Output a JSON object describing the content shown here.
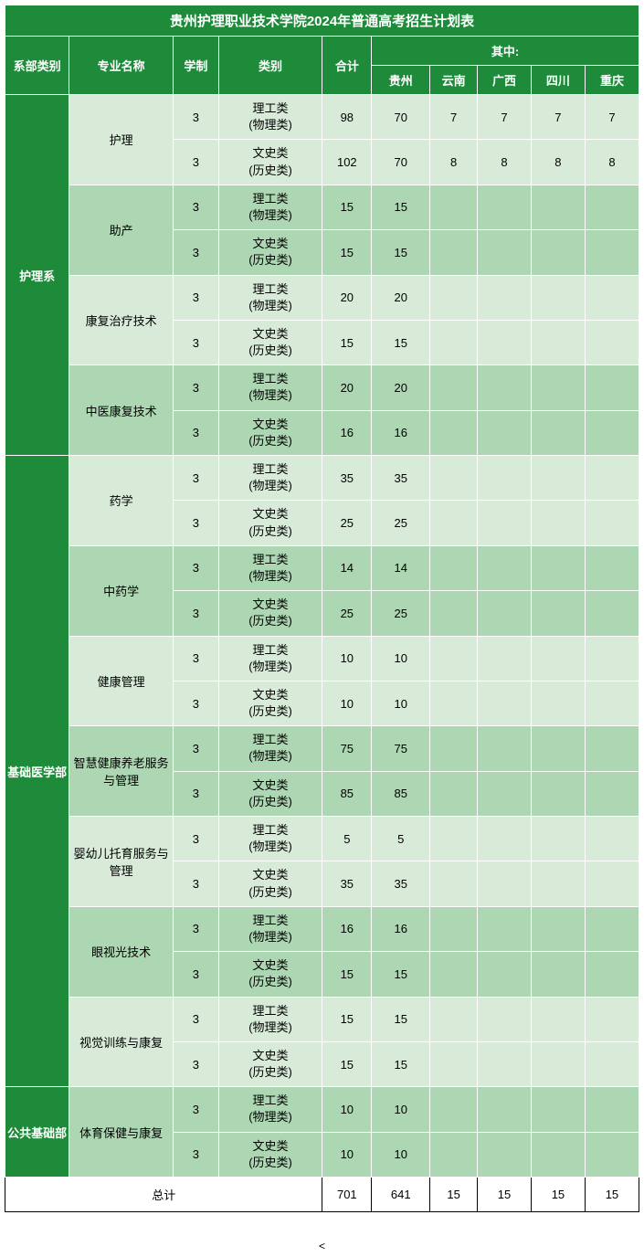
{
  "title": "贵州护理职业技术学院2024年普通高考招生计划表",
  "headers": {
    "dept": "系部类别",
    "major": "专业名称",
    "years": "学制",
    "category": "类别",
    "total": "合计",
    "breakdown": "其中:",
    "provinces": [
      "贵州",
      "云南",
      "广西",
      "四川",
      "重庆"
    ]
  },
  "categories": {
    "sci": "理工类 (物理类)",
    "lib": "文史类 (历史类)"
  },
  "departments": [
    {
      "name": "护理系",
      "rowspan": 8,
      "majors": [
        {
          "name": "护理",
          "rows": [
            {
              "y": "3",
              "cat": "sci",
              "bg": "light",
              "vals": [
                "98",
                "70",
                "7",
                "7",
                "7",
                "7"
              ]
            },
            {
              "y": "3",
              "cat": "lib",
              "bg": "light",
              "vals": [
                "102",
                "70",
                "8",
                "8",
                "8",
                "8"
              ]
            }
          ]
        },
        {
          "name": "助产",
          "rows": [
            {
              "y": "3",
              "cat": "sci",
              "bg": "dark",
              "vals": [
                "15",
                "15",
                "",
                "",
                "",
                ""
              ]
            },
            {
              "y": "3",
              "cat": "lib",
              "bg": "dark",
              "vals": [
                "15",
                "15",
                "",
                "",
                "",
                ""
              ]
            }
          ]
        },
        {
          "name": "康复治疗技术",
          "rows": [
            {
              "y": "3",
              "cat": "sci",
              "bg": "light",
              "vals": [
                "20",
                "20",
                "",
                "",
                "",
                ""
              ]
            },
            {
              "y": "3",
              "cat": "lib",
              "bg": "light",
              "vals": [
                "15",
                "15",
                "",
                "",
                "",
                ""
              ]
            }
          ]
        },
        {
          "name": "中医康复技术",
          "rows": [
            {
              "y": "3",
              "cat": "sci",
              "bg": "dark",
              "vals": [
                "20",
                "20",
                "",
                "",
                "",
                ""
              ]
            },
            {
              "y": "3",
              "cat": "lib",
              "bg": "dark",
              "vals": [
                "16",
                "16",
                "",
                "",
                "",
                ""
              ]
            }
          ]
        }
      ]
    },
    {
      "name": "基础医学部",
      "rowspan": 14,
      "majors": [
        {
          "name": "药学",
          "rows": [
            {
              "y": "3",
              "cat": "sci",
              "bg": "light",
              "vals": [
                "35",
                "35",
                "",
                "",
                "",
                ""
              ]
            },
            {
              "y": "3",
              "cat": "lib",
              "bg": "light",
              "vals": [
                "25",
                "25",
                "",
                "",
                "",
                ""
              ]
            }
          ]
        },
        {
          "name": "中药学",
          "rows": [
            {
              "y": "3",
              "cat": "sci",
              "bg": "dark",
              "vals": [
                "14",
                "14",
                "",
                "",
                "",
                ""
              ]
            },
            {
              "y": "3",
              "cat": "lib",
              "bg": "dark",
              "vals": [
                "25",
                "25",
                "",
                "",
                "",
                ""
              ]
            }
          ]
        },
        {
          "name": "健康管理",
          "rows": [
            {
              "y": "3",
              "cat": "sci",
              "bg": "light",
              "vals": [
                "10",
                "10",
                "",
                "",
                "",
                ""
              ]
            },
            {
              "y": "3",
              "cat": "lib",
              "bg": "light",
              "vals": [
                "10",
                "10",
                "",
                "",
                "",
                ""
              ]
            }
          ]
        },
        {
          "name": "智慧健康养老服务与管理",
          "rows": [
            {
              "y": "3",
              "cat": "sci",
              "bg": "dark",
              "vals": [
                "75",
                "75",
                "",
                "",
                "",
                ""
              ]
            },
            {
              "y": "3",
              "cat": "lib",
              "bg": "dark",
              "vals": [
                "85",
                "85",
                "",
                "",
                "",
                ""
              ]
            }
          ]
        },
        {
          "name": "婴幼儿托育服务与管理",
          "rows": [
            {
              "y": "3",
              "cat": "sci",
              "bg": "light",
              "vals": [
                "5",
                "5",
                "",
                "",
                "",
                ""
              ]
            },
            {
              "y": "3",
              "cat": "lib",
              "bg": "light",
              "vals": [
                "35",
                "35",
                "",
                "",
                "",
                ""
              ]
            }
          ]
        },
        {
          "name": "眼视光技术",
          "rows": [
            {
              "y": "3",
              "cat": "sci",
              "bg": "dark",
              "vals": [
                "16",
                "16",
                "",
                "",
                "",
                ""
              ]
            },
            {
              "y": "3",
              "cat": "lib",
              "bg": "dark",
              "vals": [
                "15",
                "15",
                "",
                "",
                "",
                ""
              ]
            }
          ]
        },
        {
          "name": "视觉训练与康复",
          "rows": [
            {
              "y": "3",
              "cat": "sci",
              "bg": "light",
              "vals": [
                "15",
                "15",
                "",
                "",
                "",
                ""
              ]
            },
            {
              "y": "3",
              "cat": "lib",
              "bg": "light",
              "vals": [
                "15",
                "15",
                "",
                "",
                "",
                ""
              ]
            }
          ]
        }
      ]
    },
    {
      "name": "公共基础部",
      "rowspan": 2,
      "majors": [
        {
          "name": "体育保健与康复",
          "rows": [
            {
              "y": "3",
              "cat": "sci",
              "bg": "dark",
              "vals": [
                "10",
                "10",
                "",
                "",
                "",
                ""
              ]
            },
            {
              "y": "3",
              "cat": "lib",
              "bg": "dark",
              "vals": [
                "10",
                "10",
                "",
                "",
                "",
                ""
              ]
            }
          ]
        }
      ]
    }
  ],
  "totals": {
    "label": "总计",
    "vals": [
      "701",
      "641",
      "15",
      "15",
      "15",
      "15"
    ]
  },
  "footer": "<",
  "colors": {
    "header_bg": "#1e8b3a",
    "dark_row": "#acd7b2",
    "light_row": "#d8ebd9",
    "border": "#ffffff"
  },
  "col_widths": {
    "dept": 68,
    "major": 110,
    "years": 48,
    "category": 110,
    "total": 52,
    "province": 52
  }
}
